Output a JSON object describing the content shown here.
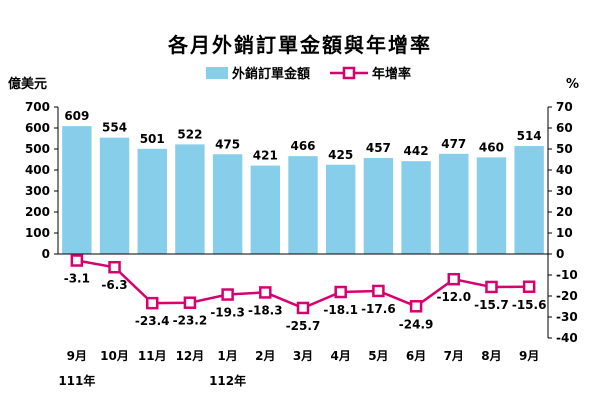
{
  "chart_data": {
    "type": "bar+line",
    "title": "各月外銷訂單金額與年增率",
    "left_unit": "億美元",
    "right_unit": "%",
    "categories": [
      "9月",
      "10月",
      "11月",
      "12月",
      "1月",
      "2月",
      "3月",
      "4月",
      "5月",
      "6月",
      "7月",
      "8月",
      "9月"
    ],
    "year_labels": [
      {
        "index": 0,
        "label": "111年"
      },
      {
        "index": 4,
        "label": "112年"
      }
    ],
    "series": [
      {
        "name": "外銷訂單金額",
        "type": "bar",
        "axis": "left",
        "color": "#87CEEB",
        "values": [
          609,
          554,
          501,
          522,
          475,
          421,
          466,
          425,
          457,
          442,
          477,
          460,
          514
        ]
      },
      {
        "name": "年增率",
        "type": "line",
        "axis": "right",
        "color": "#D6006E",
        "values": [
          -3.1,
          -6.3,
          -23.4,
          -23.2,
          -19.3,
          -18.3,
          -25.7,
          -18.1,
          -17.6,
          -24.9,
          -12.0,
          -15.7,
          -15.6
        ]
      }
    ],
    "left_ticks": [
      "700",
      "600",
      "500",
      "400",
      "300",
      "200",
      "100",
      "0"
    ],
    "right_ticks": [
      "70",
      "60",
      "50",
      "40",
      "30",
      "20",
      "10",
      "0",
      "-10",
      "-20",
      "-30",
      "-40"
    ],
    "left_range": [
      0,
      700
    ],
    "right_range": [
      -40,
      70
    ],
    "legend_position": "top-center",
    "grid": false
  }
}
